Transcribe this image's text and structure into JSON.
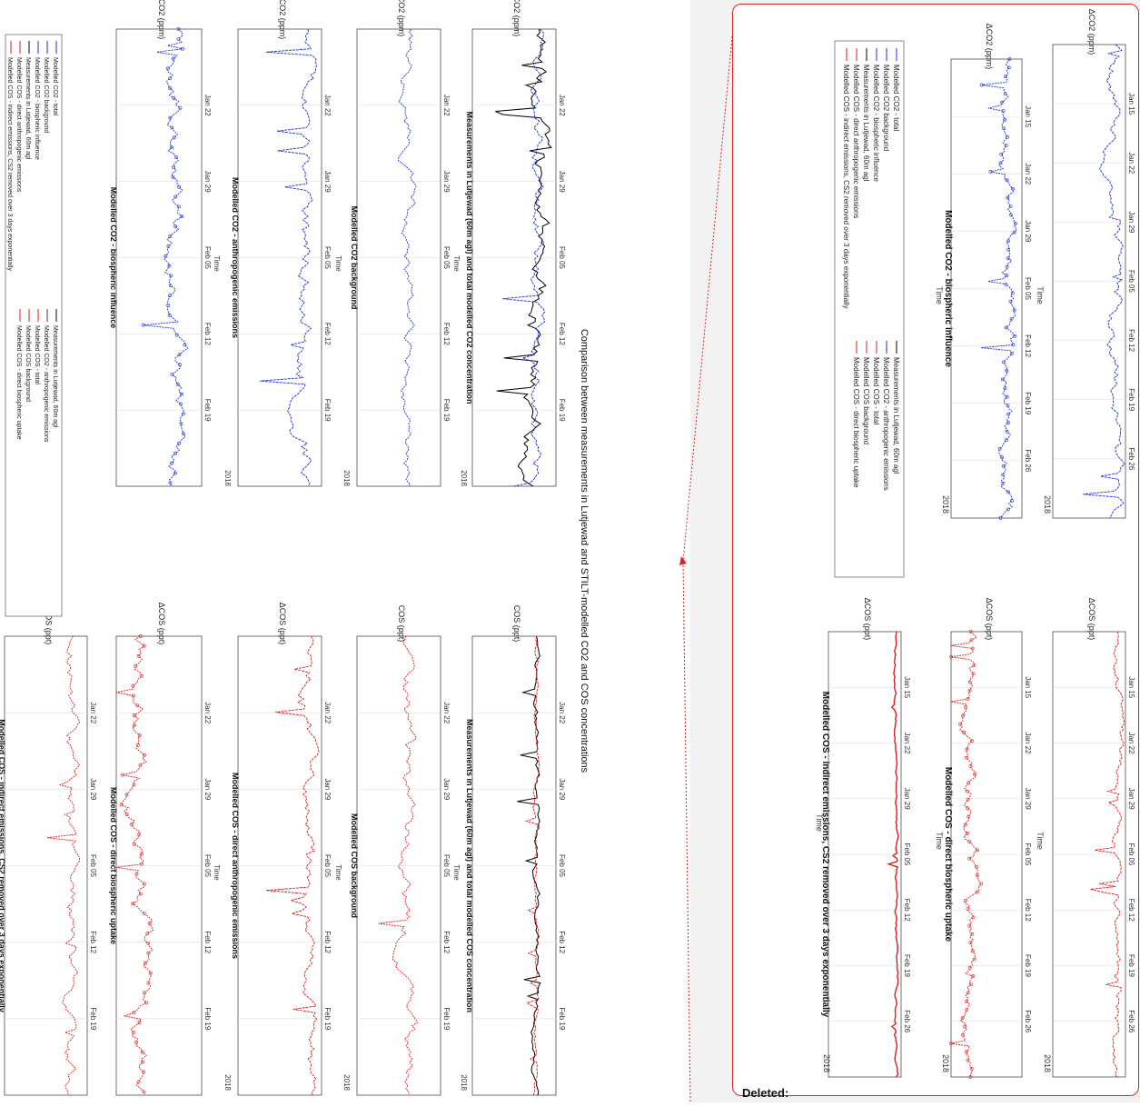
{
  "main": {
    "title_line1": "Comparison between measurements in Lutjewad and STILT-modelled CO2 and COS concentrations",
    "time_label": "Time",
    "year_label": "2018",
    "panel_titles": {
      "co2_total": "Measurements in Lutjewad (60m agl) and total modelled CO2 concentration",
      "co2_bg": "Modelled CO2 background",
      "co2_anth": "Modelled CO2 - anthropogenic emissions",
      "co2_bio": "Modelled CO2 - biospheric influence",
      "cos_total": "Measurements in Lutjewad (60m agl) and total modelled COS concentration",
      "cos_bg": "Modelled COS background",
      "cos_anth": "Modelled COS - direct anthropogenic emissions",
      "cos_bio": "Modelled COS - direct biospheric uptake",
      "cos_ind": "Modelled COS - indirect emissions, CS2 removed over 3 days exponentially"
    },
    "y_labels": {
      "co2": "CO2 (ppm)",
      "dco2": "ΔCO2 (ppm)",
      "cos": "COS (ppt)",
      "dcos": "ΔCOS (ppt)"
    },
    "x_ticks": [
      "Jan 22",
      "Jan 29",
      "Feb 05",
      "Feb 12",
      "Feb 19"
    ],
    "legend": [
      "Modelled CO2 - total",
      "Modelled CO2 background",
      "Modelled CO2 - biospheric influence",
      "Measurements in Lutjewad, 60m agl",
      "Modelled COS - direct anthropogenic emissions",
      "Modelled COS - indirect emissions, CS2 removed over 3 days exponentially"
    ],
    "legend_right": [
      "Measurements in Lutjewad, 60m agl",
      "Modelled CO2 - anthropogenic emissions",
      "Modelled COS - total",
      "Modelled COS background",
      "Modelled COS - direct biospheric uptake"
    ]
  },
  "balloon": {
    "deleted_label": "Deleted:",
    "x_ticks": [
      "Jan 15",
      "Jan 22",
      "Jan 29",
      "Feb 05",
      "Feb 12",
      "Feb 19",
      "Feb 26"
    ],
    "time_label": "Time",
    "year_label": "2018",
    "panel_titles": {
      "co2_bio": "Modelled CO2 - biospheric influence",
      "cos_bio": "Modelled COS - direct biospheric uptake",
      "cos_ind": "Modelled COS - indirect emissions, CS2 removed over 3 days exponentially"
    },
    "y_labels": {
      "dco2": "ΔCO2 (ppm)",
      "dcos": "ΔCOS (ppt)"
    }
  },
  "colors": {
    "blue": "#1f2fd6",
    "red": "#e01b1b",
    "black": "#000000",
    "balloon_border": "#dd2222"
  }
}
